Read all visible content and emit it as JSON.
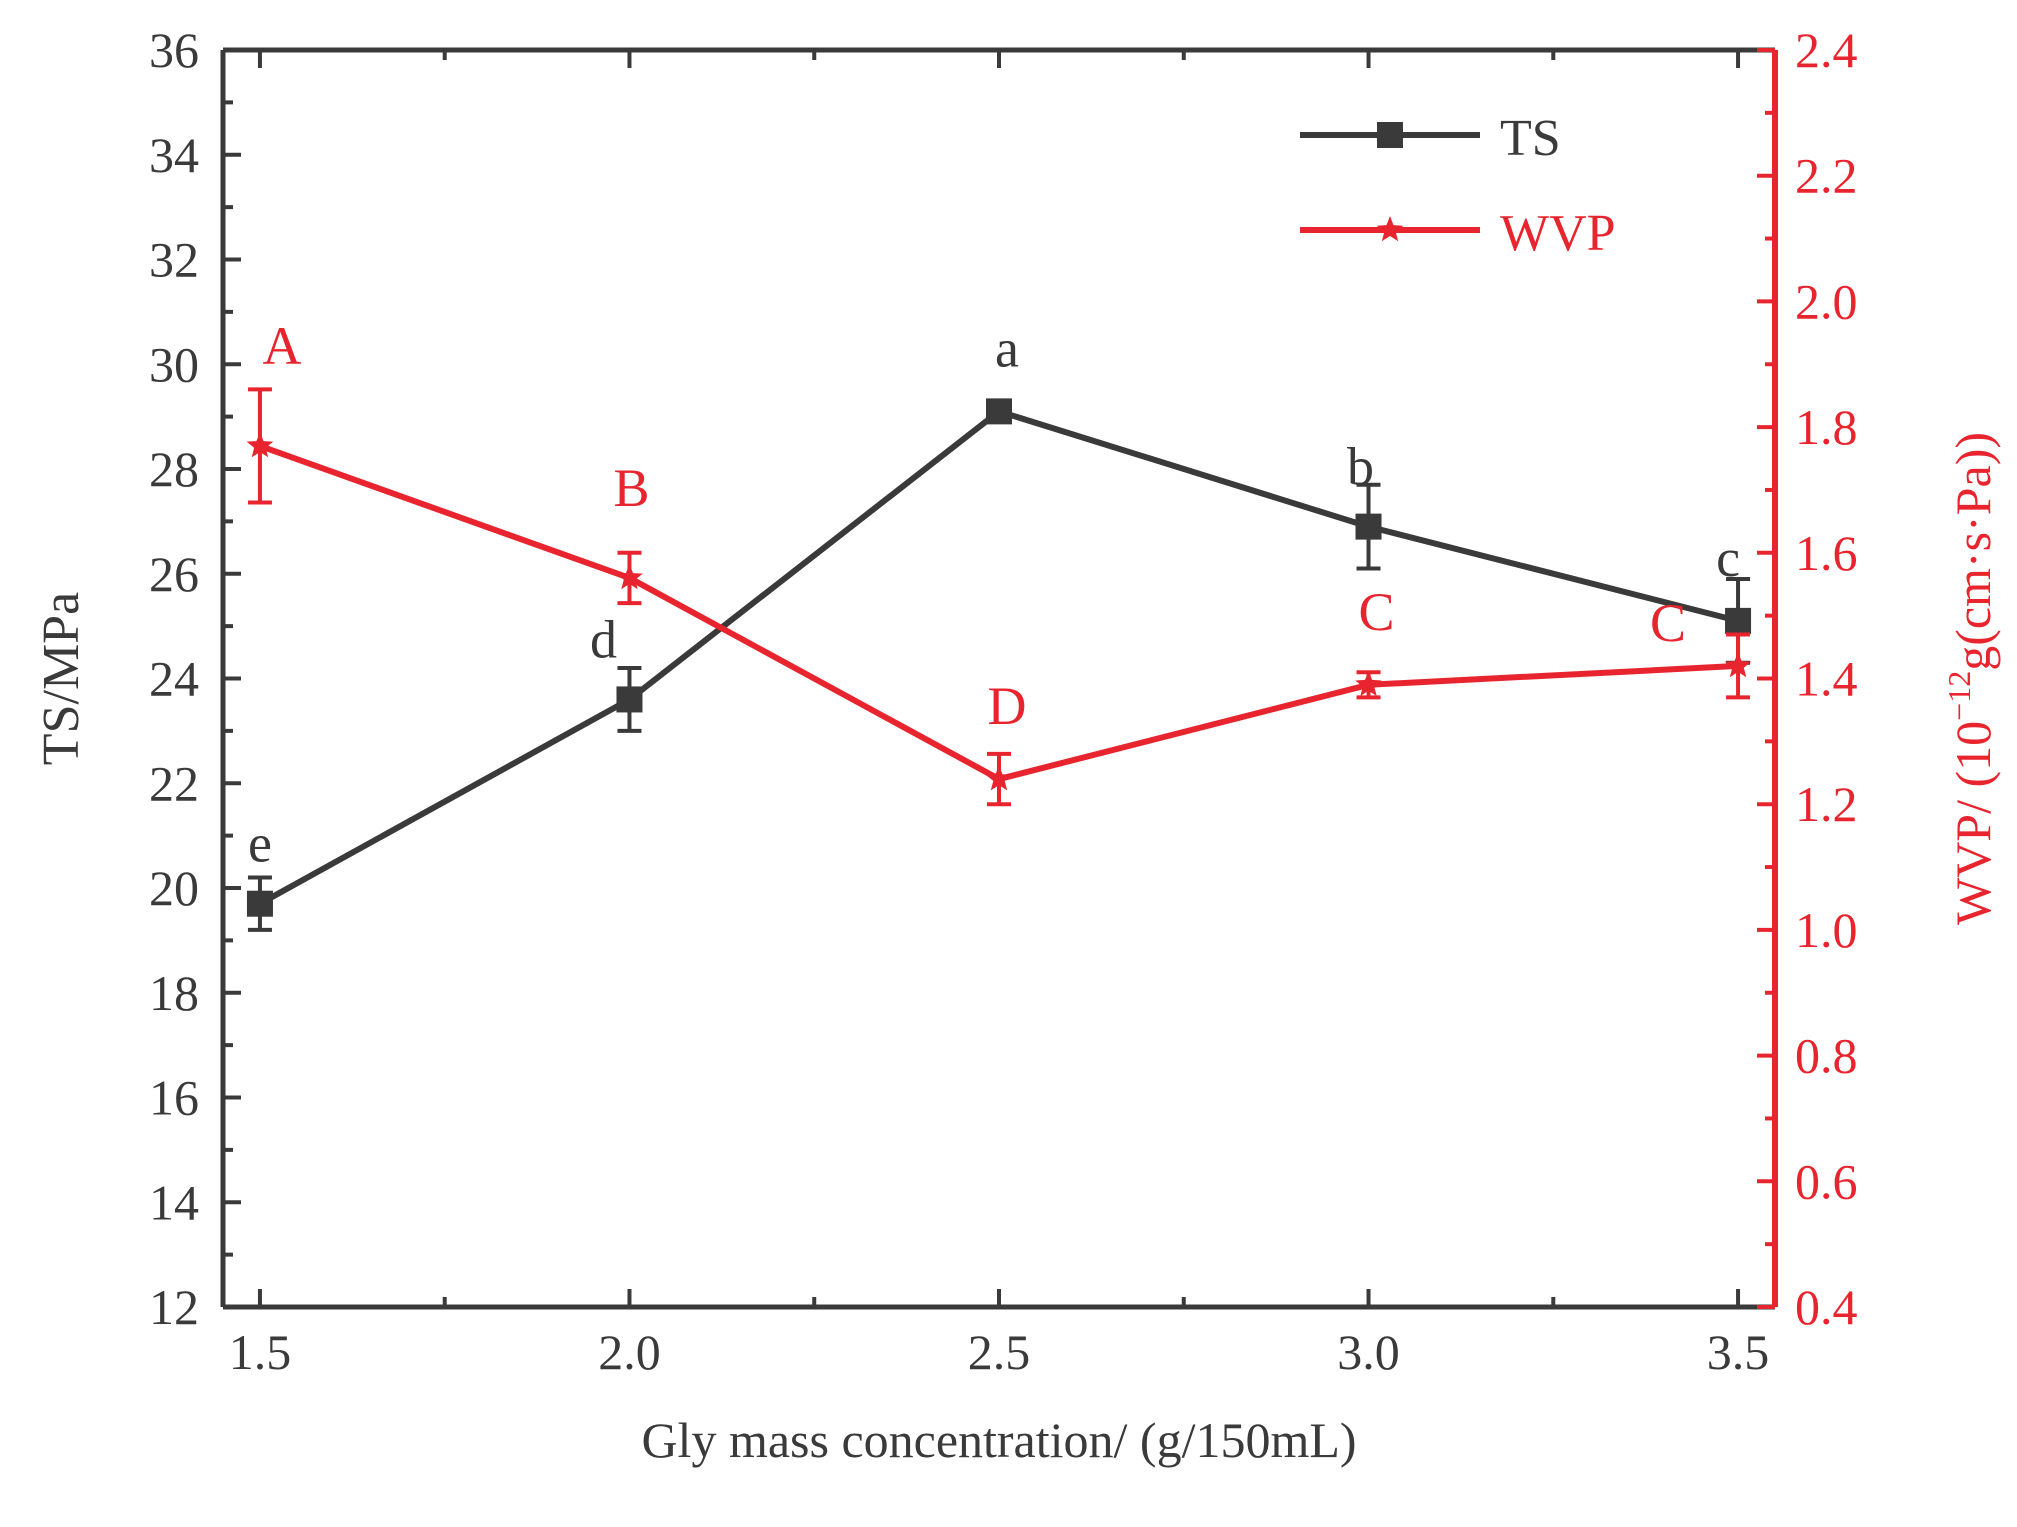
{
  "colors": {
    "ts": "#3a3a3a",
    "wvp": "#e8252e",
    "axis": "#3a3a3a"
  },
  "chart_data": {
    "type": "line",
    "xlabel": "Gly mass concentration/ (g/150mL)",
    "x": [
      1.5,
      2.0,
      2.5,
      3.0,
      3.5
    ],
    "x_ticks": [
      1.5,
      2.0,
      2.5,
      3.0,
      3.5
    ],
    "x_tick_labels": [
      "1.5",
      "2.0",
      "2.5",
      "3.0",
      "3.5"
    ],
    "xlim": [
      1.45,
      3.55
    ],
    "y_left": {
      "label": "TS/MPa",
      "lim": [
        12,
        36
      ],
      "ticks": [
        12,
        14,
        16,
        18,
        20,
        22,
        24,
        26,
        28,
        30,
        32,
        34,
        36
      ],
      "tick_labels": [
        "12",
        "14",
        "16",
        "18",
        "20",
        "22",
        "24",
        "26",
        "28",
        "30",
        "32",
        "34",
        "36"
      ]
    },
    "y_right": {
      "label_main": "WVP/ (10",
      "label_sup": "−12",
      "label_tail": "g(cm·s·Pa))",
      "lim": [
        0.4,
        2.4
      ],
      "ticks": [
        0.4,
        0.6,
        0.8,
        1.0,
        1.2,
        1.4,
        1.6,
        1.8,
        2.0,
        2.2,
        2.4
      ],
      "tick_labels": [
        "0.4",
        "0.6",
        "0.8",
        "1.0",
        "1.2",
        "1.4",
        "1.6",
        "1.8",
        "2.0",
        "2.2",
        "2.4"
      ]
    },
    "legend_position": "top-right",
    "series": [
      {
        "name": "TS",
        "axis": "left",
        "marker": "square",
        "values": [
          19.7,
          23.6,
          29.1,
          26.9,
          25.1
        ],
        "errors": [
          0.5,
          0.6,
          0.2,
          0.8,
          0.8
        ],
        "letters": [
          "e",
          "d",
          "a",
          "b",
          "c"
        ]
      },
      {
        "name": "WVP",
        "axis": "right",
        "marker": "star",
        "values": [
          1.77,
          1.56,
          1.24,
          1.39,
          1.42
        ],
        "errors": [
          0.09,
          0.04,
          0.04,
          0.02,
          0.05
        ],
        "letters": [
          "A",
          "B",
          "D",
          "C",
          "C"
        ]
      }
    ]
  }
}
